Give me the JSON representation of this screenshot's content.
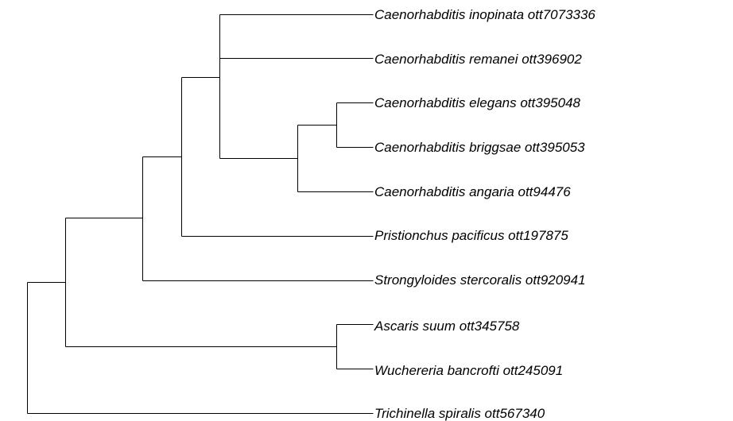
{
  "tree": {
    "tips": [
      {
        "label": "Caenorhabditis inopinata ott7073336"
      },
      {
        "label": "Caenorhabditis remanei ott396902"
      },
      {
        "label": "Caenorhabditis elegans ott395048"
      },
      {
        "label": "Caenorhabditis briggsae ott395053"
      },
      {
        "label": "Caenorhabditis angaria ott94476"
      },
      {
        "label": "Pristionchus pacificus ott197875"
      },
      {
        "label": "Strongyloides stercoralis ott920941"
      },
      {
        "label": "Ascaris suum ott345758"
      },
      {
        "label": "Wuchereria bancrofti ott245091"
      },
      {
        "label": "Trichinella spiralis ott567340"
      }
    ],
    "topology": "(((((C_inopinata,C_remanei,((C_elegans,C_briggsae),C_angaria)),P_pacificus),S_stercoralis),(A_suum,W_bancrofti)),T_spiralis)"
  }
}
